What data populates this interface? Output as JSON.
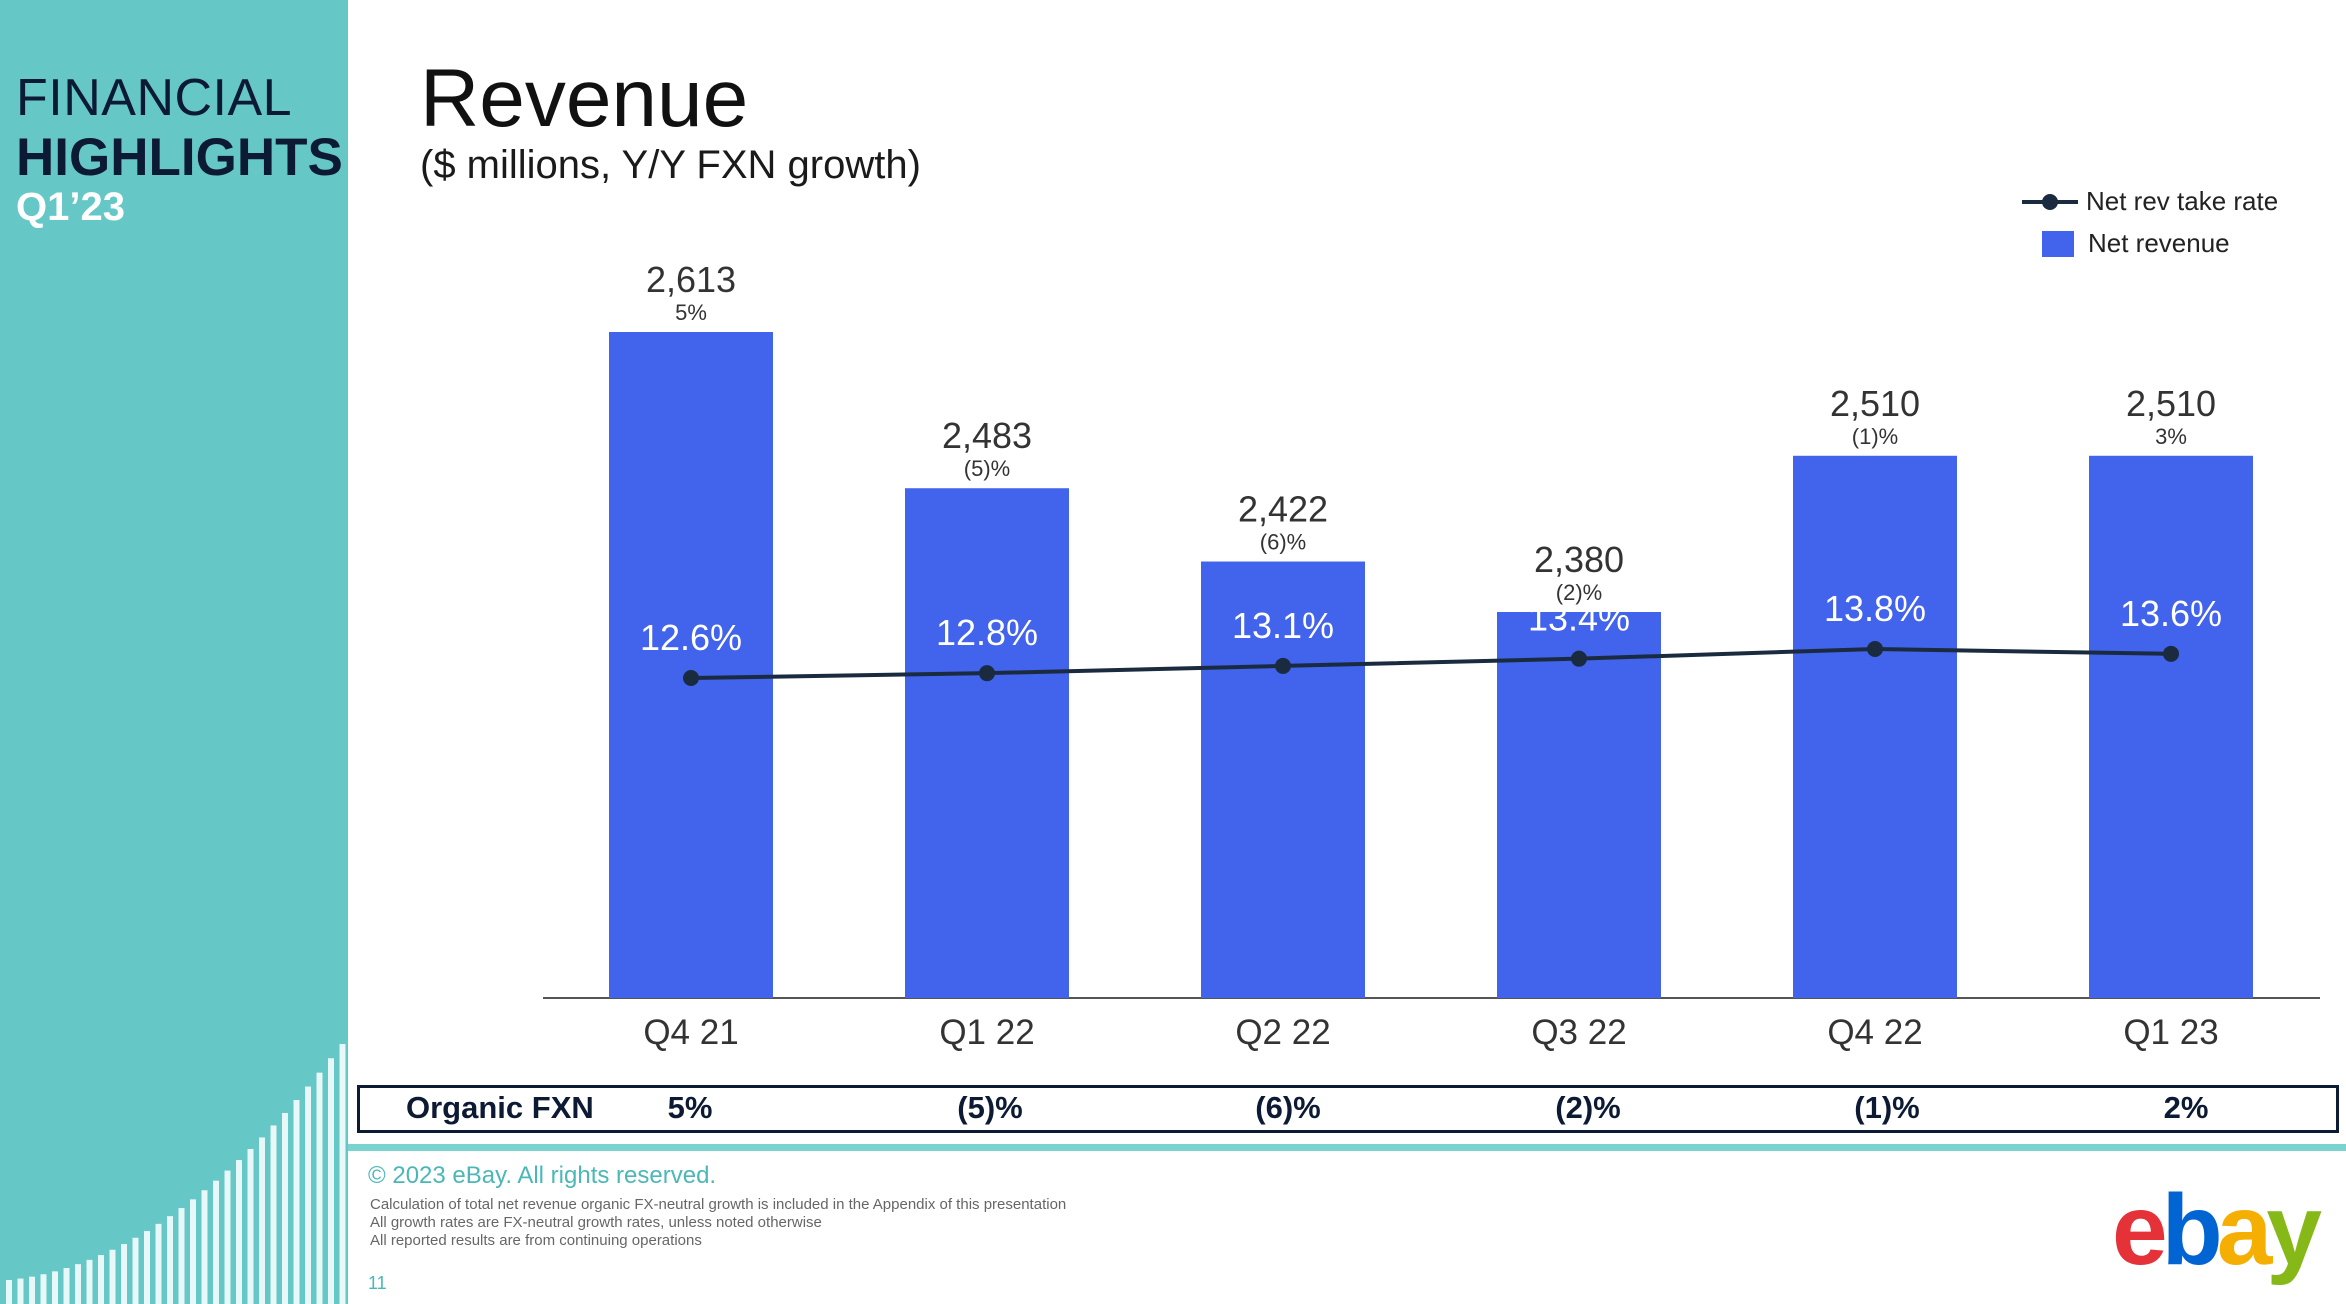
{
  "sidebar": {
    "line1": "FINANCIAL",
    "line2": "HIGHLIGHTS",
    "line3": "Q1’23"
  },
  "header": {
    "title": "Revenue",
    "subtitle": "($ millions, Y/Y FXN growth)"
  },
  "legend": {
    "line_label": "Net rev take rate",
    "bar_label": "Net revenue"
  },
  "chart_data": {
    "type": "bar",
    "categories": [
      "Q4 21",
      "Q1 22",
      "Q2 22",
      "Q3 22",
      "Q4 22",
      "Q1 23"
    ],
    "series": [
      {
        "name": "Net revenue",
        "type": "bar",
        "values": [
          2613,
          2483,
          2422,
          2380,
          2510,
          2510
        ],
        "value_labels": [
          "2,613",
          "2,483",
          "2,422",
          "2,380",
          "2,510",
          "2,510"
        ],
        "growth_labels": [
          "5%",
          "(5)%",
          "(6)%",
          "(2)%",
          "(1)%",
          "3%"
        ]
      },
      {
        "name": "Net rev take rate",
        "type": "line",
        "values": [
          12.6,
          12.8,
          13.1,
          13.4,
          13.8,
          13.6
        ],
        "value_labels": [
          "12.6%",
          "12.8%",
          "13.1%",
          "13.4%",
          "13.8%",
          "13.6%"
        ]
      }
    ],
    "legend_position": "top-right",
    "grid": false
  },
  "organic": {
    "label": "Organic FXN",
    "values": [
      "5%",
      "(5)%",
      "(6)%",
      "(2)%",
      "(1)%",
      "2%"
    ]
  },
  "footer": {
    "copyright": "© 2023 eBay. All rights reserved.",
    "notes": [
      "Calculation of total net revenue organic FX-neutral growth is included in the Appendix of this presentation",
      "All growth rates are FX-neutral growth rates, unless noted otherwise",
      "All reported results are from continuing operations"
    ],
    "page_number": "11"
  },
  "logo": {
    "letters": [
      "e",
      "b",
      "a",
      "y"
    ],
    "colors": [
      "#e53238",
      "#0064d2",
      "#f5af02",
      "#86b817"
    ]
  },
  "colors": {
    "bar": "#4263eb",
    "line": "#1a2b40",
    "sidebar": "#66c7c7",
    "accent": "#4bb7b7"
  }
}
